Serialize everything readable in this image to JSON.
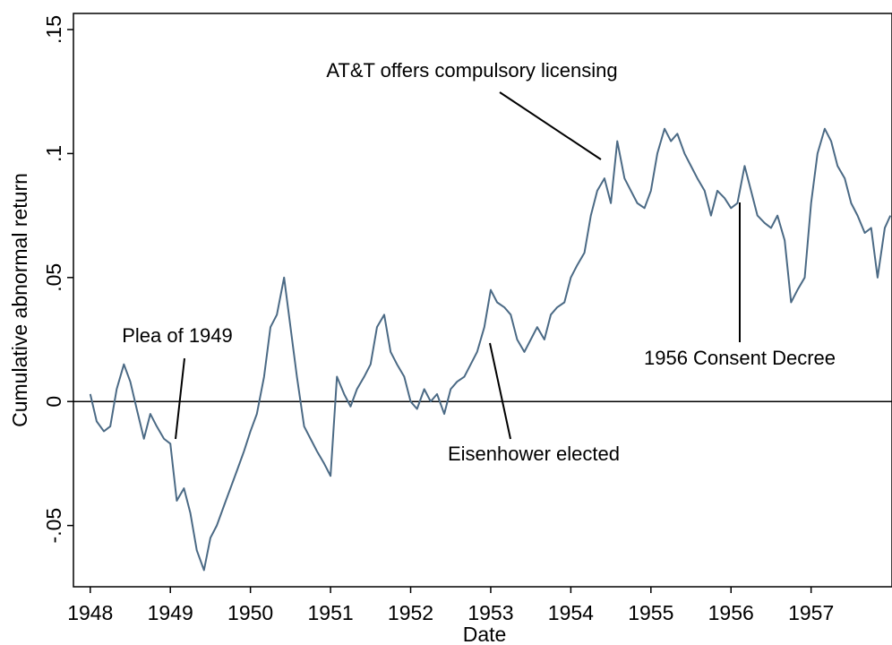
{
  "chart_data": {
    "type": "line",
    "y_label": "Cumulative abnormal return",
    "x_label": "Date",
    "xlim": [
      1947.79,
      1958.01
    ],
    "ylim": [
      -0.0747,
      0.1565
    ],
    "xticks": [
      1948,
      1949,
      1950,
      1951,
      1952,
      1953,
      1954,
      1955,
      1956,
      1957
    ],
    "yticks": [
      {
        "value": -0.05,
        "label": "-.05"
      },
      0,
      {
        "value": 0.05,
        "label": ".05"
      },
      {
        "value": 0.1,
        "label": ".1"
      },
      {
        "value": 0.15,
        "label": ".15"
      }
    ],
    "reference_line": 0,
    "annotations": [
      "Plea of 1949",
      "AT&T offers compulsory licensing",
      "Eisenhower elected",
      "1956 Consent Decree"
    ],
    "x": [
      1948.0,
      1948.08,
      1948.17,
      1948.25,
      1948.33,
      1948.42,
      1948.5,
      1948.58,
      1948.67,
      1948.75,
      1948.83,
      1948.92,
      1949.0,
      1949.08,
      1949.17,
      1949.25,
      1949.33,
      1949.42,
      1949.5,
      1949.58,
      1949.67,
      1949.75,
      1949.83,
      1949.92,
      1950.0,
      1950.08,
      1950.17,
      1950.25,
      1950.33,
      1950.42,
      1950.5,
      1950.58,
      1950.67,
      1950.75,
      1950.83,
      1950.92,
      1951.0,
      1951.08,
      1951.17,
      1951.25,
      1951.33,
      1951.42,
      1951.5,
      1951.58,
      1951.67,
      1951.75,
      1951.83,
      1951.92,
      1952.0,
      1952.08,
      1952.17,
      1952.25,
      1952.33,
      1952.42,
      1952.5,
      1952.58,
      1952.67,
      1952.75,
      1952.83,
      1952.92,
      1953.0,
      1953.08,
      1953.17,
      1953.25,
      1953.33,
      1953.42,
      1953.5,
      1953.58,
      1953.67,
      1953.75,
      1953.83,
      1953.92,
      1954.0,
      1954.08,
      1954.17,
      1954.25,
      1954.33,
      1954.42,
      1954.5,
      1954.58,
      1954.67,
      1954.75,
      1954.83,
      1954.92,
      1955.0,
      1955.08,
      1955.17,
      1955.25,
      1955.33,
      1955.42,
      1955.5,
      1955.58,
      1955.67,
      1955.75,
      1955.83,
      1955.92,
      1956.0,
      1956.08,
      1956.17,
      1956.25,
      1956.33,
      1956.42,
      1956.5,
      1956.58,
      1956.67,
      1956.75,
      1956.83,
      1956.92,
      1957.0,
      1957.08,
      1957.17,
      1957.25,
      1957.33,
      1957.42,
      1957.5,
      1957.58,
      1957.67,
      1957.75,
      1957.83,
      1957.92,
      1957.99
    ],
    "series": [
      {
        "color": "#4b6a85",
        "values": [
          0.003,
          -0.008,
          -0.012,
          -0.01,
          0.005,
          0.015,
          0.008,
          -0.003,
          -0.015,
          -0.005,
          -0.01,
          -0.015,
          -0.017,
          -0.04,
          -0.035,
          -0.045,
          -0.06,
          -0.068,
          -0.055,
          -0.05,
          -0.042,
          -0.035,
          -0.028,
          -0.02,
          -0.012,
          -0.005,
          0.01,
          0.03,
          0.035,
          0.05,
          0.03,
          0.01,
          -0.01,
          -0.015,
          -0.02,
          -0.025,
          -0.03,
          0.01,
          0.003,
          -0.002,
          0.005,
          0.01,
          0.015,
          0.03,
          0.035,
          0.02,
          0.015,
          0.01,
          0.0,
          -0.003,
          0.005,
          0.0,
          0.003,
          -0.005,
          0.005,
          0.008,
          0.01,
          0.015,
          0.02,
          0.03,
          0.045,
          0.04,
          0.038,
          0.035,
          0.025,
          0.02,
          0.025,
          0.03,
          0.025,
          0.035,
          0.038,
          0.04,
          0.05,
          0.055,
          0.06,
          0.075,
          0.085,
          0.09,
          0.08,
          0.105,
          0.09,
          0.085,
          0.08,
          0.078,
          0.085,
          0.1,
          0.11,
          0.105,
          0.108,
          0.1,
          0.095,
          0.09,
          0.085,
          0.075,
          0.085,
          0.082,
          0.078,
          0.08,
          0.095,
          0.085,
          0.075,
          0.072,
          0.07,
          0.075,
          0.065,
          0.04,
          0.045,
          0.05,
          0.08,
          0.1,
          0.11,
          0.105,
          0.095,
          0.09,
          0.08,
          0.075,
          0.068,
          0.07,
          0.05,
          0.07,
          0.075
        ]
      }
    ]
  }
}
